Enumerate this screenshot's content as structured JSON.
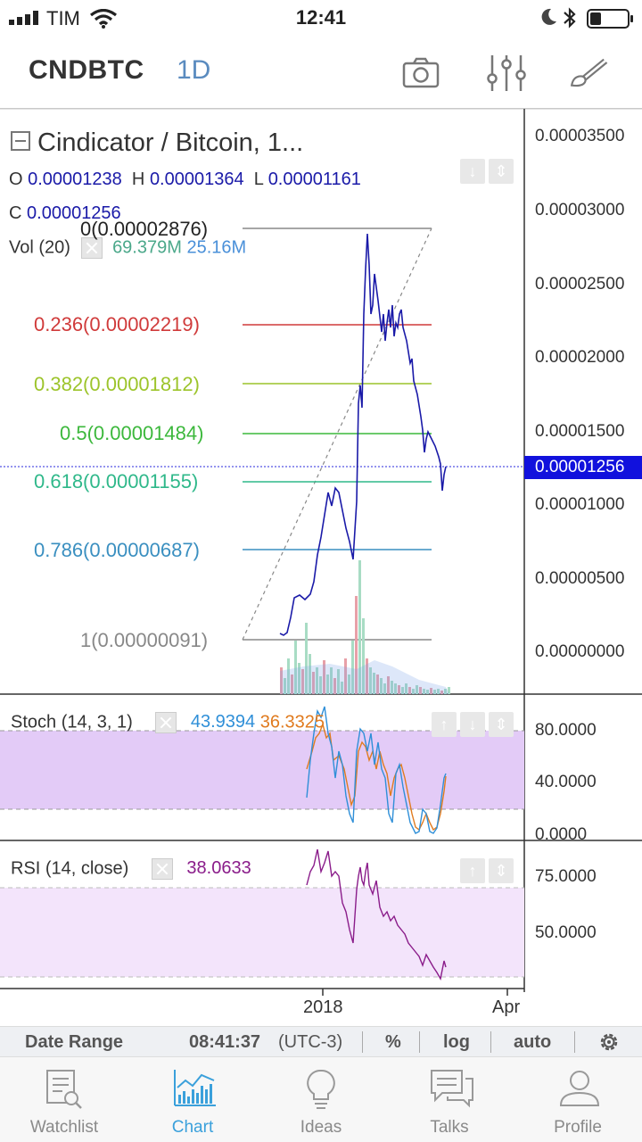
{
  "status_bar": {
    "carrier": "TIM",
    "time": "12:41"
  },
  "header": {
    "symbol": "CNDBTC",
    "interval": "1D",
    "icons": [
      "camera-icon",
      "indicators-sliders-icon",
      "drawing-brush-icon"
    ]
  },
  "main_pane": {
    "title": "Cindicator / Bitcoin, 1...",
    "open_label": "O",
    "open": "0.00001238",
    "high_label": "H",
    "high": "0.00001364",
    "low_label": "L",
    "low": "0.00001161",
    "close_label": "C",
    "close": "0.00001256",
    "volume_label": "Vol (20)",
    "volume_value": "69.379M",
    "volume_ma": "25.16M",
    "price_axis": [
      "0.00003500",
      "0.00003000",
      "0.00002500",
      "0.00002000",
      "0.00001500",
      "0.00001000",
      "0.00000500",
      "0.00000000"
    ],
    "last_price": "0.00001256",
    "fib_levels": [
      {
        "label": "0(0.00002876)",
        "color": "#888888"
      },
      {
        "label": "0.236(0.00002219)",
        "color": "#d03a3a"
      },
      {
        "label": "0.382(0.00001812)",
        "color": "#9cc42a"
      },
      {
        "label": "0.5(0.00001484)",
        "color": "#3cb83c"
      },
      {
        "label": "0.618(0.00001155)",
        "color": "#2fb88a"
      },
      {
        "label": "0.786(0.00000687)",
        "color": "#3a8fc0"
      },
      {
        "label": "1(0.00000091)",
        "color": "#888888"
      }
    ]
  },
  "stoch_pane": {
    "label": "Stoch (14, 3, 1)",
    "k_value": "43.9394",
    "d_value": "36.3325",
    "axis": [
      "80.0000",
      "40.0000",
      "0.0000"
    ]
  },
  "rsi_pane": {
    "label": "RSI (14, close)",
    "value": "38.0633",
    "axis": [
      "75.0000",
      "50.0000"
    ]
  },
  "time_axis": [
    "2018",
    "Apr"
  ],
  "range_bar": {
    "date_range": "Date Range",
    "clock": "08:41:37",
    "timezone": "(UTC-3)",
    "percent": "%",
    "log": "log",
    "auto": "auto"
  },
  "tabs": [
    {
      "label": "Watchlist",
      "icon": "watchlist-icon",
      "active": false
    },
    {
      "label": "Chart",
      "icon": "chart-icon",
      "active": true
    },
    {
      "label": "Ideas",
      "icon": "lightbulb-icon",
      "active": false
    },
    {
      "label": "Talks",
      "icon": "chat-bubbles-icon",
      "active": false
    },
    {
      "label": "Profile",
      "icon": "profile-icon",
      "active": false
    }
  ],
  "colors": {
    "accent": "#3aa0db",
    "price_line": "#1a1aa8",
    "stoch_band": "#e3cbf7",
    "rsi_band": "#f3e4fb",
    "stoch_k": "#2f8fd8",
    "stoch_d": "#e07b1f",
    "rsi_line": "#8a1c8a"
  }
}
